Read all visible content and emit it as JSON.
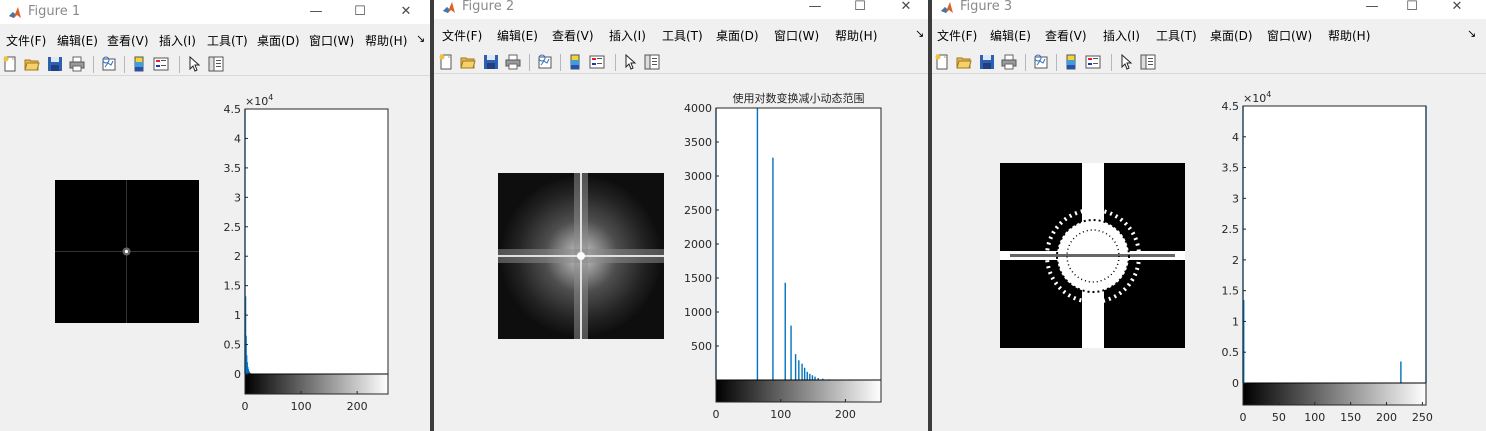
{
  "menu": [
    "文件(F)",
    "编辑(E)",
    "查看(V)",
    "插入(I)",
    "工具(T)",
    "桌面(D)",
    "窗口(W)",
    "帮助(H)"
  ],
  "menu_more": "↘",
  "window_controls": {
    "minimize": "—",
    "maximize": "☐",
    "close": "✕"
  },
  "toolbar_icons": [
    "new-figure-icon",
    "open-file-icon",
    "save-icon",
    "print-icon",
    "link-plot-icon",
    "insert-colorbar-icon",
    "insert-legend-icon",
    "edit-plot-arrow-icon",
    "property-inspector-icon"
  ],
  "colors": {
    "bar": "#0072bd",
    "titlebar": "#ffffff",
    "window_bg": "#f0f0f0",
    "axes_bg": "#ffffff"
  },
  "windows": [
    {
      "title": "Figure 1",
      "image": {
        "description_kind": "fft-spectrum-dark"
      },
      "chart_data": {
        "type": "bar",
        "title": "",
        "xlabel": "",
        "ylabel": "",
        "ylim": [
          0,
          45000
        ],
        "xlim": [
          0,
          255
        ],
        "y_exponent_label": "×10",
        "y_exponent_power": "4",
        "yticks": [
          0,
          5000,
          10000,
          15000,
          20000,
          25000,
          30000,
          35000,
          40000,
          45000
        ],
        "ytick_labels": [
          "0",
          "0.5",
          "1",
          "1.5",
          "2",
          "2.5",
          "3",
          "3.5",
          "4",
          "4.5"
        ],
        "xticks": [
          0,
          100,
          200
        ],
        "xtick_labels": [
          "0",
          "100",
          "200"
        ],
        "bars": [
          {
            "x": 0,
            "y": 45000
          },
          {
            "x": 1,
            "y": 13200
          },
          {
            "x": 2,
            "y": 6500
          },
          {
            "x": 3,
            "y": 3200
          },
          {
            "x": 4,
            "y": 2000
          },
          {
            "x": 5,
            "y": 1200
          },
          {
            "x": 6,
            "y": 800
          },
          {
            "x": 7,
            "y": 500
          },
          {
            "x": 8,
            "y": 300
          },
          {
            "x": 10,
            "y": 150
          }
        ]
      }
    },
    {
      "title": "Figure 2",
      "image": {
        "description_kind": "fft-spectrum-log"
      },
      "chart_data": {
        "type": "bar",
        "title": "使用对数变换减小动态范围",
        "xlabel": "",
        "ylabel": "",
        "ylim": [
          0,
          4000
        ],
        "xlim": [
          0,
          255
        ],
        "yticks": [
          500,
          1000,
          1500,
          2000,
          2500,
          3000,
          3500,
          4000
        ],
        "ytick_labels": [
          "500",
          "1000",
          "1500",
          "2000",
          "2500",
          "3000",
          "3500",
          "4000"
        ],
        "xticks": [
          0,
          100,
          200
        ],
        "xtick_labels": [
          "0",
          "100",
          "200"
        ],
        "bars": [
          {
            "x": 0,
            "y": 4000
          },
          {
            "x": 64,
            "y": 4000
          },
          {
            "x": 88,
            "y": 3270
          },
          {
            "x": 107,
            "y": 1430
          },
          {
            "x": 116,
            "y": 800
          },
          {
            "x": 123,
            "y": 380
          },
          {
            "x": 128,
            "y": 290
          },
          {
            "x": 133,
            "y": 240
          },
          {
            "x": 137,
            "y": 180
          },
          {
            "x": 141,
            "y": 120
          },
          {
            "x": 145,
            "y": 90
          },
          {
            "x": 149,
            "y": 70
          },
          {
            "x": 153,
            "y": 50
          },
          {
            "x": 158,
            "y": 30
          },
          {
            "x": 165,
            "y": 20
          },
          {
            "x": 175,
            "y": 10
          }
        ]
      }
    },
    {
      "title": "Figure 3",
      "image": {
        "description_kind": "fft-spectrum-threshold"
      },
      "chart_data": {
        "type": "bar",
        "title": "",
        "xlabel": "",
        "ylabel": "",
        "ylim": [
          0,
          45000
        ],
        "xlim": [
          0,
          255
        ],
        "y_exponent_label": "×10",
        "y_exponent_power": "4",
        "yticks": [
          0,
          5000,
          10000,
          15000,
          20000,
          25000,
          30000,
          35000,
          40000,
          45000
        ],
        "ytick_labels": [
          "0",
          "0.5",
          "1",
          "1.5",
          "2",
          "2.5",
          "3",
          "3.5",
          "4",
          "4.5"
        ],
        "xticks": [
          0,
          50,
          100,
          150,
          200,
          250
        ],
        "xtick_labels": [
          "0",
          "50",
          "100",
          "150",
          "200",
          "250"
        ],
        "bars": [
          {
            "x": 0,
            "y": 45000
          },
          {
            "x": 1,
            "y": 13500
          },
          {
            "x": 220,
            "y": 3500
          },
          {
            "x": 255,
            "y": 45000
          }
        ]
      }
    }
  ]
}
